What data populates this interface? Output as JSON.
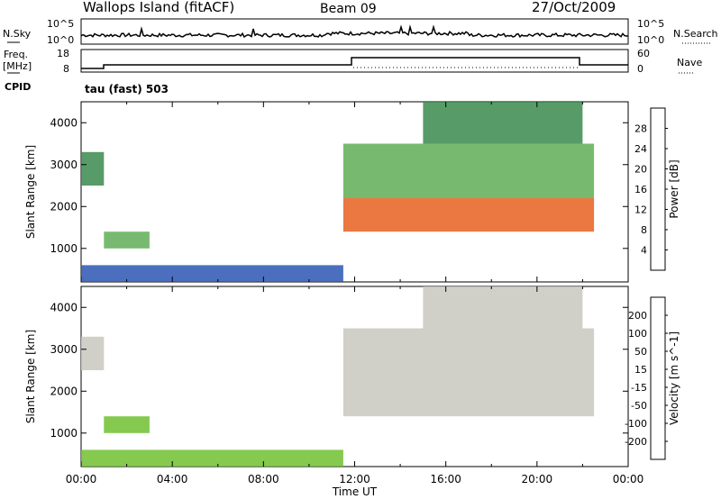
{
  "header": {
    "station": "Wallops Island (fitACF)",
    "beam": "Beam 09",
    "date": "27/Oct/2009"
  },
  "time_panel": {
    "left_label_top": "N.Sky",
    "left_label_bottom_tick": "10^0",
    "left_label_top_tick": "10^5",
    "right_label": "N.Search",
    "right_top_tick": "10^5",
    "right_bottom_tick": "10^0"
  },
  "freq_panel": {
    "left_label": "Freq.",
    "left_unit": "[MHz]",
    "left_ticks": [
      "18",
      "8"
    ],
    "right_label": "Nave",
    "right_ticks": [
      "60",
      "0"
    ],
    "cpid_label": "CPID",
    "cpid_text": "tau (fast) 503"
  },
  "colors": {
    "power": [
      "#1e1ec8",
      "#2c56b3",
      "#3a8a4e",
      "#5fae56",
      "#c8c820",
      "#f0a020",
      "#e86020",
      "#e81010"
    ],
    "velocity": [
      "#e81010",
      "#f04010",
      "#f08818",
      "#f0c040",
      "#c8c8c0",
      "#70c030",
      "#2a9a3a",
      "#2a5a8a",
      "#1e1ec8"
    ]
  },
  "chart_data": [
    {
      "type": "heatmap",
      "title": "",
      "xlabel": "Time UT",
      "ylabel": "Slant Range [km]",
      "xlim": [
        "00:00",
        "00:00"
      ],
      "ylim": [
        200,
        4500
      ],
      "x_ticks": [
        "00:00",
        "04:00",
        "08:00",
        "12:00",
        "16:00",
        "20:00",
        "00:00"
      ],
      "y_ticks": [
        1000,
        2000,
        3000,
        4000
      ],
      "colorbar": {
        "label": "Power [dB]",
        "ticks": [
          4,
          8,
          12,
          16,
          20,
          24,
          28
        ],
        "range": [
          0,
          32
        ]
      },
      "regions": [
        {
          "t": [
            0.0,
            1.0
          ],
          "r": [
            2500,
            3300
          ],
          "value": 8
        },
        {
          "t": [
            1.0,
            3.0
          ],
          "r": [
            1000,
            1400
          ],
          "value": 14
        },
        {
          "t": [
            0.0,
            11.5
          ],
          "r": [
            200,
            600
          ],
          "value": 6
        },
        {
          "t": [
            11.5,
            22.5
          ],
          "r": [
            1400,
            2200
          ],
          "value": 26
        },
        {
          "t": [
            11.5,
            22.5
          ],
          "r": [
            2200,
            3500
          ],
          "value": 14
        },
        {
          "t": [
            15.0,
            22.0
          ],
          "r": [
            3500,
            4500
          ],
          "value": 10
        }
      ]
    },
    {
      "type": "heatmap",
      "title": "",
      "xlabel": "Time UT",
      "ylabel": "Slant Range [km]",
      "xlim": [
        "00:00",
        "00:00"
      ],
      "ylim": [
        200,
        4500
      ],
      "x_ticks": [
        "00:00",
        "04:00",
        "08:00",
        "12:00",
        "16:00",
        "20:00",
        "00:00"
      ],
      "y_ticks": [
        1000,
        2000,
        3000,
        4000
      ],
      "colorbar": {
        "label": "Velocity [m s^-1]",
        "ticks": [
          200,
          100,
          50,
          15,
          -15,
          -50,
          -100,
          -200
        ],
        "range": [
          -250,
          250
        ]
      },
      "regions": [
        {
          "t": [
            0.0,
            1.0
          ],
          "r": [
            2500,
            3300
          ],
          "value": 0
        },
        {
          "t": [
            1.0,
            3.0
          ],
          "r": [
            1000,
            1400
          ],
          "value": 30
        },
        {
          "t": [
            0.0,
            11.5
          ],
          "r": [
            200,
            600
          ],
          "value": 30
        },
        {
          "t": [
            11.5,
            22.5
          ],
          "r": [
            1400,
            2200
          ],
          "value": 0
        },
        {
          "t": [
            11.5,
            22.5
          ],
          "r": [
            2200,
            3500
          ],
          "value": 0
        },
        {
          "t": [
            15.0,
            22.0
          ],
          "r": [
            3500,
            4500
          ],
          "value": 0
        }
      ]
    }
  ]
}
